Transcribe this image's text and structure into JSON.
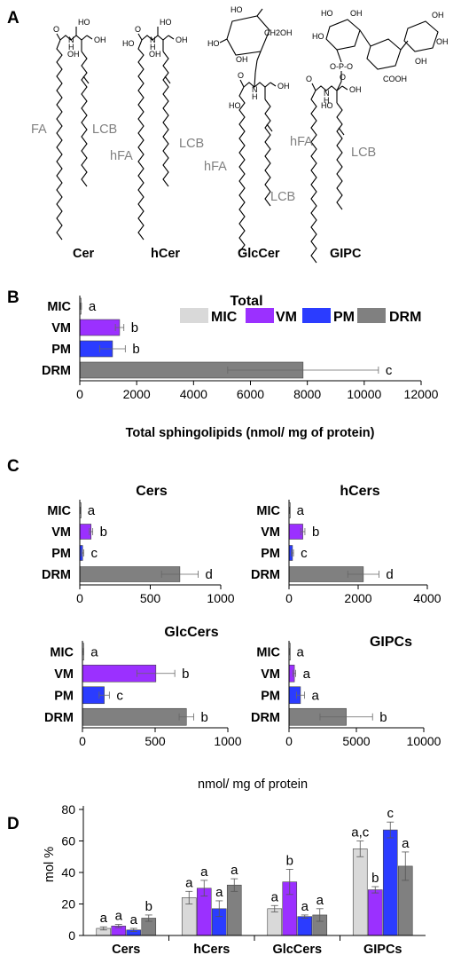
{
  "panels": {
    "A": "A",
    "B": "B",
    "C": "C",
    "D": "D"
  },
  "structures": {
    "names": [
      "Cer",
      "hCer",
      "GlcCer",
      "GIPC"
    ],
    "labels": {
      "fa": "FA",
      "hfa": "hFA",
      "lcb": "LCB"
    },
    "atoms": {
      "oh": "OH",
      "ho": "HO",
      "nh_n": "N",
      "nh_h": "H",
      "o": "O",
      "ch2oh": "CH2OH",
      "phos": "O-P-O",
      "phos_o": "O",
      "cooh": "COOH"
    }
  },
  "colors": {
    "MIC": "#d9d9d9",
    "VM": "#9b30ff",
    "PM": "#2b3cff",
    "DRM": "#808080"
  },
  "legend": [
    "MIC",
    "VM",
    "PM",
    "DRM"
  ],
  "chart_data": [
    {
      "id": "total",
      "type": "bar",
      "orientation": "horizontal",
      "title": "Total",
      "xlabel": "Total sphingolipids (nmol/ mg of protein)",
      "categories": [
        "MIC",
        "VM",
        "PM",
        "DRM"
      ],
      "values": [
        40,
        1400,
        1150,
        7850
      ],
      "errors": [
        20,
        150,
        450,
        2650
      ],
      "significance": [
        "a",
        "b",
        "b",
        "c"
      ],
      "xlim": [
        0,
        12000
      ],
      "xticks": [
        "0",
        "2000",
        "4000",
        "6000",
        "8000",
        "10000",
        "12000"
      ]
    },
    {
      "id": "cers",
      "type": "bar",
      "orientation": "horizontal",
      "title": "Cers",
      "categories": [
        "MIC",
        "VM",
        "PM",
        "DRM"
      ],
      "values": [
        3,
        80,
        20,
        710
      ],
      "errors": [
        2,
        12,
        8,
        130
      ],
      "significance": [
        "a",
        "b",
        "c",
        "d"
      ],
      "xlim": [
        0,
        1000
      ],
      "xticks": [
        "0",
        "500",
        "1000"
      ]
    },
    {
      "id": "hcers",
      "type": "bar",
      "orientation": "horizontal",
      "title": "hCers",
      "categories": [
        "MIC",
        "VM",
        "PM",
        "DRM"
      ],
      "values": [
        10,
        400,
        100,
        2150
      ],
      "errors": [
        5,
        60,
        30,
        450
      ],
      "significance": [
        "a",
        "b",
        "c",
        "d"
      ],
      "xlim": [
        0,
        4000
      ],
      "xticks": [
        "0",
        "2000",
        "4000"
      ]
    },
    {
      "id": "glccers",
      "type": "bar",
      "orientation": "horizontal",
      "title": "GlcCers",
      "xlabel": "nmol/ mg of protein",
      "categories": [
        "MIC",
        "VM",
        "PM",
        "DRM"
      ],
      "values": [
        5,
        505,
        150,
        715
      ],
      "errors": [
        3,
        130,
        35,
        50
      ],
      "significance": [
        "a",
        "b",
        "c",
        "b"
      ],
      "xlim": [
        0,
        1000
      ],
      "xticks": [
        "0",
        "500",
        "1000"
      ]
    },
    {
      "id": "gipcs",
      "type": "bar",
      "orientation": "horizontal",
      "title": "GIPCs",
      "categories": [
        "MIC",
        "VM",
        "PM",
        "DRM"
      ],
      "values": [
        20,
        400,
        850,
        4250
      ],
      "errors": [
        10,
        100,
        300,
        1950
      ],
      "significance": [
        "a",
        "a",
        "a",
        "b"
      ],
      "xlim": [
        0,
        10000
      ],
      "xticks": [
        "0",
        "5000",
        "10000"
      ]
    },
    {
      "id": "molpct",
      "type": "bar",
      "orientation": "vertical",
      "ylabel": "mol %",
      "categories": [
        "Cers",
        "hCers",
        "GlcCers",
        "GIPCs"
      ],
      "series": [
        {
          "name": "MIC",
          "values": [
            4.5,
            24,
            17,
            55
          ],
          "errors": [
            1,
            4,
            2,
            5
          ],
          "significance": [
            "a",
            "a",
            "a",
            "a,c"
          ]
        },
        {
          "name": "VM",
          "values": [
            6,
            30,
            34,
            29
          ],
          "errors": [
            1,
            5,
            8,
            2
          ],
          "significance": [
            "a",
            "a",
            "b",
            "b"
          ]
        },
        {
          "name": "PM",
          "values": [
            3.5,
            17,
            12,
            67
          ],
          "errors": [
            1,
            5,
            1,
            5
          ],
          "significance": [
            "a",
            "a",
            "a",
            "c"
          ]
        },
        {
          "name": "DRM",
          "values": [
            11,
            32,
            13,
            44
          ],
          "errors": [
            2,
            4,
            4,
            9
          ],
          "significance": [
            "b",
            "a",
            "a",
            "a"
          ]
        }
      ],
      "ylim": [
        0,
        80
      ],
      "yticks": [
        "0",
        "20",
        "40",
        "60",
        "80"
      ]
    }
  ]
}
